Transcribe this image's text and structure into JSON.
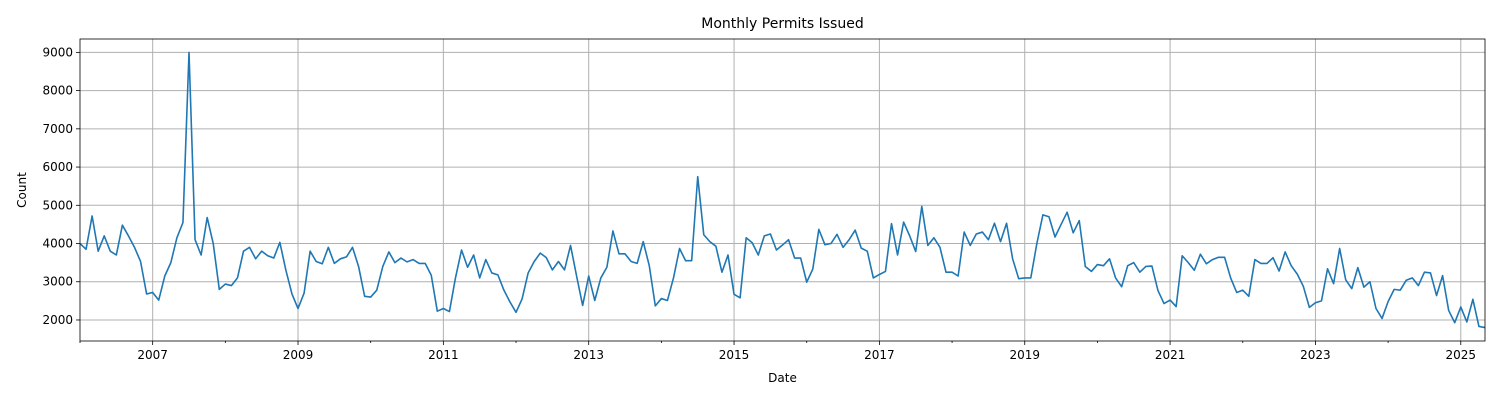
{
  "chart_data": {
    "type": "line",
    "title": "Monthly Permits Issued",
    "xlabel": "Date",
    "ylabel": "Count",
    "xlim": [
      "2006-01",
      "2025-05"
    ],
    "ylim": [
      1450,
      9350
    ],
    "grid": true,
    "x_ticks": [
      "2007",
      "2009",
      "2011",
      "2013",
      "2015",
      "2017",
      "2019",
      "2021",
      "2023",
      "2025"
    ],
    "y_ticks": [
      "2000",
      "3000",
      "4000",
      "5000",
      "6000",
      "7000",
      "8000",
      "9000"
    ],
    "series": [
      {
        "color": "#1f77b4",
        "x": [
          "2006-01",
          "2006-02",
          "2006-03",
          "2006-04",
          "2006-05",
          "2006-06",
          "2006-07",
          "2006-08",
          "2006-09",
          "2006-10",
          "2006-11",
          "2006-12",
          "2007-01",
          "2007-02",
          "2007-03",
          "2007-04",
          "2007-05",
          "2007-06",
          "2007-07",
          "2007-08",
          "2007-09",
          "2007-10",
          "2007-11",
          "2007-12",
          "2008-01",
          "2008-02",
          "2008-03",
          "2008-04",
          "2008-05",
          "2008-06",
          "2008-07",
          "2008-08",
          "2008-09",
          "2008-10",
          "2008-11",
          "2008-12",
          "2009-01",
          "2009-02",
          "2009-03",
          "2009-04",
          "2009-05",
          "2009-06",
          "2009-07",
          "2009-08",
          "2009-09",
          "2009-10",
          "2009-11",
          "2009-12",
          "2010-01",
          "2010-02",
          "2010-03",
          "2010-04",
          "2010-05",
          "2010-06",
          "2010-07",
          "2010-08",
          "2010-09",
          "2010-10",
          "2010-11",
          "2010-12",
          "2011-01",
          "2011-02",
          "2011-03",
          "2011-04",
          "2011-05",
          "2011-06",
          "2011-07",
          "2011-08",
          "2011-09",
          "2011-10",
          "2011-11",
          "2011-12",
          "2012-01",
          "2012-02",
          "2012-03",
          "2012-04",
          "2012-05",
          "2012-06",
          "2012-07",
          "2012-08",
          "2012-09",
          "2012-10",
          "2012-11",
          "2012-12",
          "2013-01",
          "2013-02",
          "2013-03",
          "2013-04",
          "2013-05",
          "2013-06",
          "2013-07",
          "2013-08",
          "2013-09",
          "2013-10",
          "2013-11",
          "2013-12",
          "2014-01",
          "2014-02",
          "2014-03",
          "2014-04",
          "2014-05",
          "2014-06",
          "2014-07",
          "2014-08",
          "2014-09",
          "2014-10",
          "2014-11",
          "2014-12",
          "2015-01",
          "2015-02",
          "2015-03",
          "2015-04",
          "2015-05",
          "2015-06",
          "2015-07",
          "2015-08",
          "2015-09",
          "2015-10",
          "2015-11",
          "2015-12",
          "2016-01",
          "2016-02",
          "2016-03",
          "2016-04",
          "2016-05",
          "2016-06",
          "2016-07",
          "2016-08",
          "2016-09",
          "2016-10",
          "2016-11",
          "2016-12",
          "2017-01",
          "2017-02",
          "2017-03",
          "2017-04",
          "2017-05",
          "2017-06",
          "2017-07",
          "2017-08",
          "2017-09",
          "2017-10",
          "2017-11",
          "2017-12",
          "2018-01",
          "2018-02",
          "2018-03",
          "2018-04",
          "2018-05",
          "2018-06",
          "2018-07",
          "2018-08",
          "2018-09",
          "2018-10",
          "2018-11",
          "2018-12",
          "2019-01",
          "2019-02",
          "2019-03",
          "2019-04",
          "2019-05",
          "2019-06",
          "2019-07",
          "2019-08",
          "2019-09",
          "2019-10",
          "2019-11",
          "2019-12",
          "2020-01",
          "2020-02",
          "2020-03",
          "2020-04",
          "2020-05",
          "2020-06",
          "2020-07",
          "2020-08",
          "2020-09",
          "2020-10",
          "2020-11",
          "2020-12",
          "2021-01",
          "2021-02",
          "2021-03",
          "2021-04",
          "2021-05",
          "2021-06",
          "2021-07",
          "2021-08",
          "2021-09",
          "2021-10",
          "2021-11",
          "2021-12",
          "2022-01",
          "2022-02",
          "2022-03",
          "2022-04",
          "2022-05",
          "2022-06",
          "2022-07",
          "2022-08",
          "2022-09",
          "2022-10",
          "2022-11",
          "2022-12",
          "2023-01",
          "2023-02",
          "2023-03",
          "2023-04",
          "2023-05",
          "2023-06",
          "2023-07",
          "2023-08",
          "2023-09",
          "2023-10",
          "2023-11",
          "2023-12",
          "2024-01",
          "2024-02",
          "2024-03",
          "2024-04",
          "2024-05",
          "2024-06",
          "2024-07",
          "2024-08",
          "2024-09",
          "2024-10",
          "2024-11",
          "2024-12",
          "2025-01",
          "2025-02",
          "2025-03",
          "2025-04",
          "2025-05"
        ],
        "y": [
          4000,
          3850,
          4720,
          3800,
          4200,
          3800,
          3700,
          4480,
          4200,
          3900,
          3530,
          2680,
          2720,
          2520,
          3150,
          3500,
          4150,
          4550,
          9000,
          4100,
          3700,
          4680,
          4000,
          2800,
          2940,
          2900,
          3100,
          3800,
          3900,
          3600,
          3800,
          3680,
          3620,
          4030,
          3300,
          2680,
          2300,
          2700,
          3800,
          3530,
          3470,
          3900,
          3480,
          3600,
          3650,
          3900,
          3400,
          2620,
          2600,
          2780,
          3400,
          3780,
          3500,
          3620,
          3520,
          3580,
          3480,
          3480,
          3170,
          2230,
          2300,
          2220,
          3100,
          3830,
          3380,
          3700,
          3100,
          3580,
          3230,
          3180,
          2780,
          2470,
          2200,
          2550,
          3230,
          3530,
          3750,
          3630,
          3310,
          3530,
          3310,
          3950,
          3150,
          2380,
          3150,
          2510,
          3100,
          3380,
          4330,
          3730,
          3730,
          3530,
          3480,
          4050,
          3420,
          2370,
          2560,
          2510,
          3100,
          3870,
          3550,
          3550,
          5750,
          4230,
          4050,
          3930,
          3250,
          3700,
          2670,
          2580,
          4150,
          4020,
          3700,
          4200,
          4250,
          3830,
          3960,
          4100,
          3620,
          3620,
          2990,
          3330,
          4370,
          3970,
          4000,
          4240,
          3900,
          4100,
          4350,
          3880,
          3800,
          3100,
          3190,
          3270,
          4520,
          3700,
          4560,
          4200,
          3790,
          4970,
          3950,
          4150,
          3900,
          3250,
          3250,
          3150,
          4300,
          3950,
          4250,
          4300,
          4100,
          4530,
          4050,
          4530,
          3600,
          3080,
          3100,
          3100,
          4000,
          4750,
          4700,
          4170,
          4500,
          4820,
          4280,
          4600,
          3400,
          3270,
          3450,
          3420,
          3600,
          3100,
          2870,
          3420,
          3500,
          3250,
          3400,
          3410,
          2770,
          2430,
          2520,
          2350,
          3680,
          3500,
          3300,
          3720,
          3470,
          3580,
          3640,
          3640,
          3100,
          2720,
          2780,
          2620,
          3580,
          3480,
          3480,
          3630,
          3280,
          3780,
          3420,
          3200,
          2880,
          2330,
          2450,
          2500,
          3340,
          2950,
          3870,
          3050,
          2820,
          3370,
          2860,
          3000,
          2300,
          2040,
          2480,
          2800,
          2780,
          3040,
          3100,
          2900,
          3250,
          3230,
          2640,
          3160,
          2250,
          1930,
          2340,
          1950,
          2540,
          1830,
          1800
        ]
      }
    ]
  }
}
